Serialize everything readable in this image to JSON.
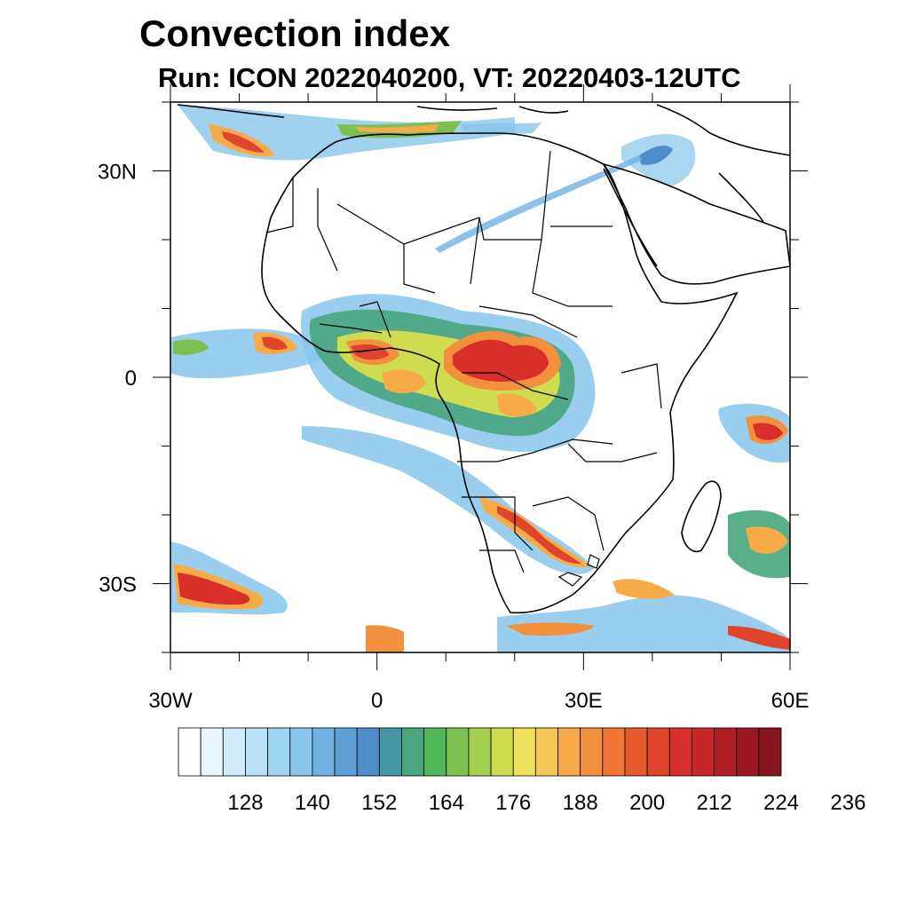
{
  "header": {
    "title": "Convection index",
    "subtitle": "Run: ICON 2022040200,  VT: 20220403-12UTC"
  },
  "map": {
    "extent": {
      "lon_min": -30,
      "lon_max": 60,
      "lat_min": -40,
      "lat_max": 40
    },
    "lat_ticks": [
      {
        "lat": 30,
        "label": "30N"
      },
      {
        "lat": 0,
        "label": "0"
      },
      {
        "lat": -30,
        "label": "30S"
      }
    ],
    "lon_ticks": [
      {
        "lon": -30,
        "label": "30W"
      },
      {
        "lon": 0,
        "label": "0"
      },
      {
        "lon": 30,
        "label": "30E"
      },
      {
        "lon": 60,
        "label": "60E"
      }
    ]
  },
  "colorbar": {
    "colors": [
      "#ffffff",
      "#e8f5fc",
      "#cfeaf8",
      "#b8e0f6",
      "#9fd5f2",
      "#88c5eb",
      "#72b2e2",
      "#5e9fd6",
      "#4e8dc9",
      "#4597a6",
      "#48a67e",
      "#50b65a",
      "#7dc052",
      "#a5cd4e",
      "#cfdc50",
      "#efe25a",
      "#f6c756",
      "#f6ab48",
      "#f3903e",
      "#ef7535",
      "#e75a30",
      "#e0442d",
      "#d82f2b",
      "#c8262a",
      "#b21e26",
      "#9b1822",
      "#88161e"
    ],
    "labels": [
      "128",
      "140",
      "152",
      "164",
      "176",
      "188",
      "200",
      "212",
      "224",
      "236"
    ]
  }
}
